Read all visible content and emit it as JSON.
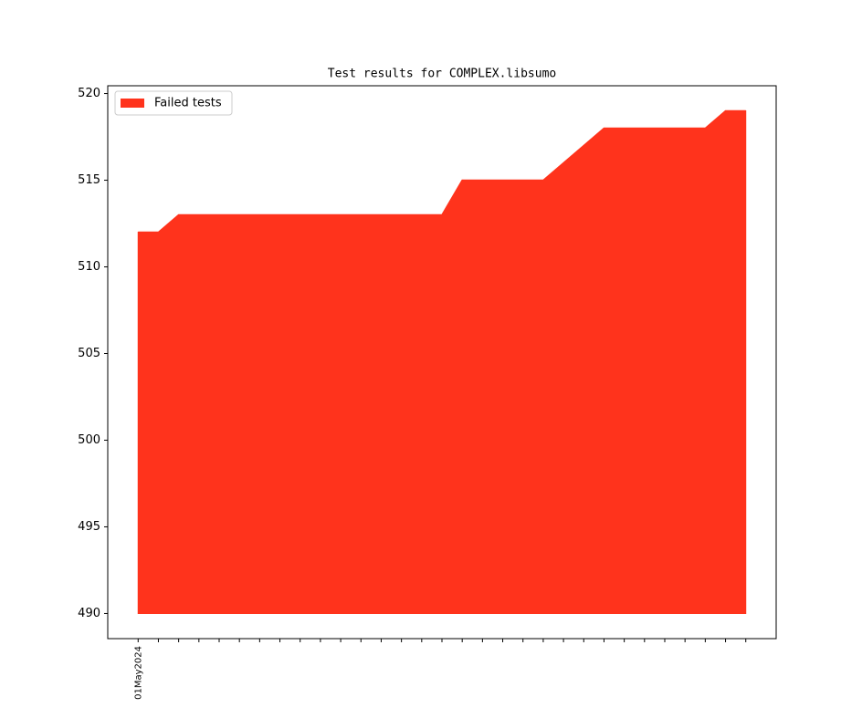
{
  "chart_data": {
    "type": "area",
    "title": "Test results for COMPLEX.libsumo",
    "categories": [
      "01May2024",
      null,
      null,
      null,
      null,
      null,
      null,
      null,
      null,
      null,
      null,
      null,
      null,
      null,
      null,
      null,
      null,
      null,
      null,
      null,
      null,
      null,
      null,
      null,
      null,
      null,
      null,
      null,
      null,
      null,
      null
    ],
    "series": [
      {
        "name": "Failed tests",
        "color": "#ff331c",
        "values": [
          512,
          512,
          513,
          513,
          513,
          513,
          513,
          513,
          513,
          513,
          513,
          513,
          513,
          513,
          513,
          513,
          515,
          515,
          515,
          515,
          515,
          516,
          517,
          518,
          518,
          518,
          518,
          518,
          518,
          519,
          519
        ]
      }
    ],
    "fill_base": 490,
    "ylim": [
      488.55,
      520.45
    ],
    "yticks": [
      490,
      495,
      500,
      505,
      510,
      515,
      520
    ],
    "legend": "upper left"
  }
}
